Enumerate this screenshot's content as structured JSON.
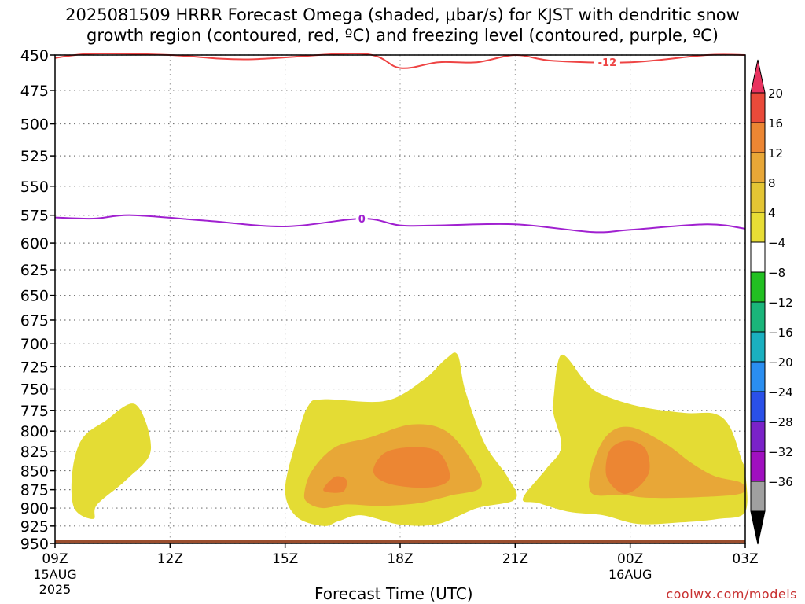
{
  "chart_data": {
    "type": "contour",
    "title": "2025081509 HRRR Forecast Omega (shaded, μbar/s) for KJST with dendritic snow\ngrowth region (contoured, red, ºC) and freezing level (contoured, purple, ºC)",
    "xlabel": "Forecast Time (UTC)",
    "ylabel": "",
    "y_scale": "log",
    "y_range": [
      950,
      450
    ],
    "y_ticks": [
      450,
      475,
      500,
      525,
      550,
      575,
      600,
      625,
      650,
      675,
      700,
      725,
      750,
      775,
      800,
      825,
      850,
      875,
      900,
      925,
      950
    ],
    "x_range": [
      "2025-08-15 09Z",
      "2025-08-16 03Z"
    ],
    "x_ticks": [
      {
        "hour": 0,
        "label": "09Z",
        "sub1": "15AUG",
        "sub2": "2025"
      },
      {
        "hour": 3,
        "label": "12Z",
        "sub1": "",
        "sub2": ""
      },
      {
        "hour": 6,
        "label": "15Z",
        "sub1": "",
        "sub2": ""
      },
      {
        "hour": 9,
        "label": "18Z",
        "sub1": "",
        "sub2": ""
      },
      {
        "hour": 12,
        "label": "21Z",
        "sub1": "",
        "sub2": ""
      },
      {
        "hour": 15,
        "label": "00Z",
        "sub1": "16AUG",
        "sub2": ""
      },
      {
        "hour": 18,
        "label": "03Z",
        "sub1": "",
        "sub2": ""
      }
    ],
    "grid": true,
    "colorbar": {
      "levels": [
        20,
        16,
        12,
        8,
        4,
        -4,
        -8,
        -12,
        -16,
        -20,
        -24,
        -28,
        -32,
        -36
      ],
      "colors": [
        "#e8325f",
        "#ea4a3a",
        "#ec8633",
        "#e8a737",
        "#e4c534",
        "#e8dd35",
        "#ffffff",
        "#22c022",
        "#1ab57a",
        "#1ab0c0",
        "#2a8ef0",
        "#2a50e8",
        "#7a22c8",
        "#a010c0",
        "#a0a0a0",
        "#000000"
      ]
    },
    "omega_regions": [
      {
        "level_min": 4,
        "shade": "#e4dc34",
        "points": [
          [
            0.45,
            852
          ],
          [
            0.7,
            810
          ],
          [
            1.3,
            788
          ],
          [
            2.1,
            768
          ],
          [
            2.5,
            823
          ],
          [
            1.9,
            860
          ],
          [
            1.1,
            895
          ],
          [
            1.0,
            915
          ],
          [
            0.5,
            900
          ]
        ]
      },
      {
        "level_min": 4,
        "shade": "#e4dc34",
        "points": [
          [
            6.0,
            875
          ],
          [
            6.3,
            810
          ],
          [
            6.6,
            770
          ],
          [
            7.0,
            762
          ],
          [
            8.6,
            764
          ],
          [
            9.6,
            740
          ],
          [
            10.2,
            716
          ],
          [
            10.5,
            712
          ],
          [
            10.7,
            752
          ],
          [
            11.2,
            815
          ],
          [
            11.8,
            858
          ],
          [
            12.0,
            888
          ],
          [
            11.0,
            900
          ],
          [
            10.0,
            922
          ],
          [
            9.0,
            923
          ],
          [
            8.0,
            910
          ],
          [
            7.4,
            918
          ],
          [
            7.0,
            925
          ],
          [
            6.3,
            912
          ]
        ]
      },
      {
        "level_min": 4,
        "shade": "#e4dc34",
        "points": [
          [
            12.2,
            887
          ],
          [
            12.8,
            848
          ],
          [
            13.2,
            820
          ],
          [
            13.0,
            779
          ],
          [
            13.0,
            762
          ],
          [
            13.2,
            712
          ],
          [
            13.8,
            740
          ],
          [
            14.2,
            755
          ],
          [
            15.2,
            770
          ],
          [
            16.4,
            778
          ],
          [
            17.2,
            779
          ],
          [
            17.6,
            795
          ],
          [
            17.9,
            835
          ],
          [
            18.0,
            852
          ],
          [
            18.0,
            905
          ],
          [
            17.3,
            915
          ],
          [
            16.3,
            920
          ],
          [
            15.2,
            922
          ],
          [
            14.3,
            910
          ],
          [
            13.4,
            905
          ],
          [
            12.6,
            893
          ]
        ]
      },
      {
        "level_min": 8,
        "shade": "#e8a737",
        "points": [
          [
            6.5,
            880
          ],
          [
            6.7,
            850
          ],
          [
            7.3,
            820
          ],
          [
            8.2,
            808
          ],
          [
            9.3,
            792
          ],
          [
            10.2,
            800
          ],
          [
            10.9,
            840
          ],
          [
            11.1,
            872
          ],
          [
            10.3,
            883
          ],
          [
            9.5,
            893
          ],
          [
            8.5,
            897
          ],
          [
            7.6,
            895
          ],
          [
            7.0,
            900
          ],
          [
            6.6,
            893
          ]
        ]
      },
      {
        "level_min": 8,
        "shade": "#e8a737",
        "points": [
          [
            14.0,
            880
          ],
          [
            14.0,
            845
          ],
          [
            14.4,
            805
          ],
          [
            15.0,
            795
          ],
          [
            15.9,
            815
          ],
          [
            16.6,
            840
          ],
          [
            17.2,
            857
          ],
          [
            17.9,
            866
          ],
          [
            17.9,
            880
          ],
          [
            16.8,
            885
          ],
          [
            15.5,
            886
          ],
          [
            14.8,
            882
          ]
        ]
      },
      {
        "level_min": 12,
        "shade": "#ec8633",
        "points": [
          [
            7.0,
            876
          ],
          [
            7.3,
            858
          ],
          [
            7.6,
            862
          ],
          [
            7.5,
            878
          ]
        ]
      },
      {
        "level_min": 12,
        "shade": "#ec8633",
        "points": [
          [
            8.3,
            850
          ],
          [
            8.6,
            827
          ],
          [
            9.3,
            820
          ],
          [
            10.0,
            826
          ],
          [
            10.3,
            857
          ],
          [
            10.0,
            870
          ],
          [
            9.3,
            872
          ],
          [
            8.6,
            865
          ]
        ]
      },
      {
        "level_min": 12,
        "shade": "#ec8633",
        "points": [
          [
            14.4,
            860
          ],
          [
            14.4,
            832
          ],
          [
            14.6,
            817
          ],
          [
            15.0,
            812
          ],
          [
            15.4,
            822
          ],
          [
            15.5,
            850
          ],
          [
            15.2,
            872
          ],
          [
            14.8,
            880
          ]
        ]
      }
    ],
    "terrain": [
      {
        "x_start": 0,
        "x_end": 18,
        "pressure": 945
      }
    ],
    "contours": [
      {
        "name": "dendritic snow growth region",
        "value": -12,
        "label": "-12",
        "label_x": 14.4,
        "color": "#ee4444",
        "points": [
          [
            0,
            452
          ],
          [
            1.0,
            449
          ],
          [
            3.0,
            450
          ],
          [
            5.0,
            453
          ],
          [
            8.0,
            449
          ],
          [
            9.0,
            459
          ],
          [
            10.0,
            455
          ],
          [
            11.0,
            455
          ],
          [
            12.0,
            450
          ],
          [
            13.0,
            454
          ],
          [
            15.0,
            455
          ],
          [
            17.0,
            450
          ],
          [
            18.0,
            450
          ]
        ]
      },
      {
        "name": "freezing level",
        "value": 0,
        "label": "0",
        "label_x": 8.0,
        "color": "#a020d0",
        "points": [
          [
            0,
            577
          ],
          [
            1.0,
            578
          ],
          [
            2.0,
            575
          ],
          [
            4.0,
            580
          ],
          [
            6.0,
            585
          ],
          [
            8.0,
            578
          ],
          [
            9.0,
            584
          ],
          [
            10.0,
            584
          ],
          [
            12.0,
            583
          ],
          [
            14.0,
            590
          ],
          [
            15.0,
            588
          ],
          [
            17.0,
            583
          ],
          [
            18.0,
            587
          ]
        ]
      }
    ]
  },
  "credit": "coolwx.com/models"
}
